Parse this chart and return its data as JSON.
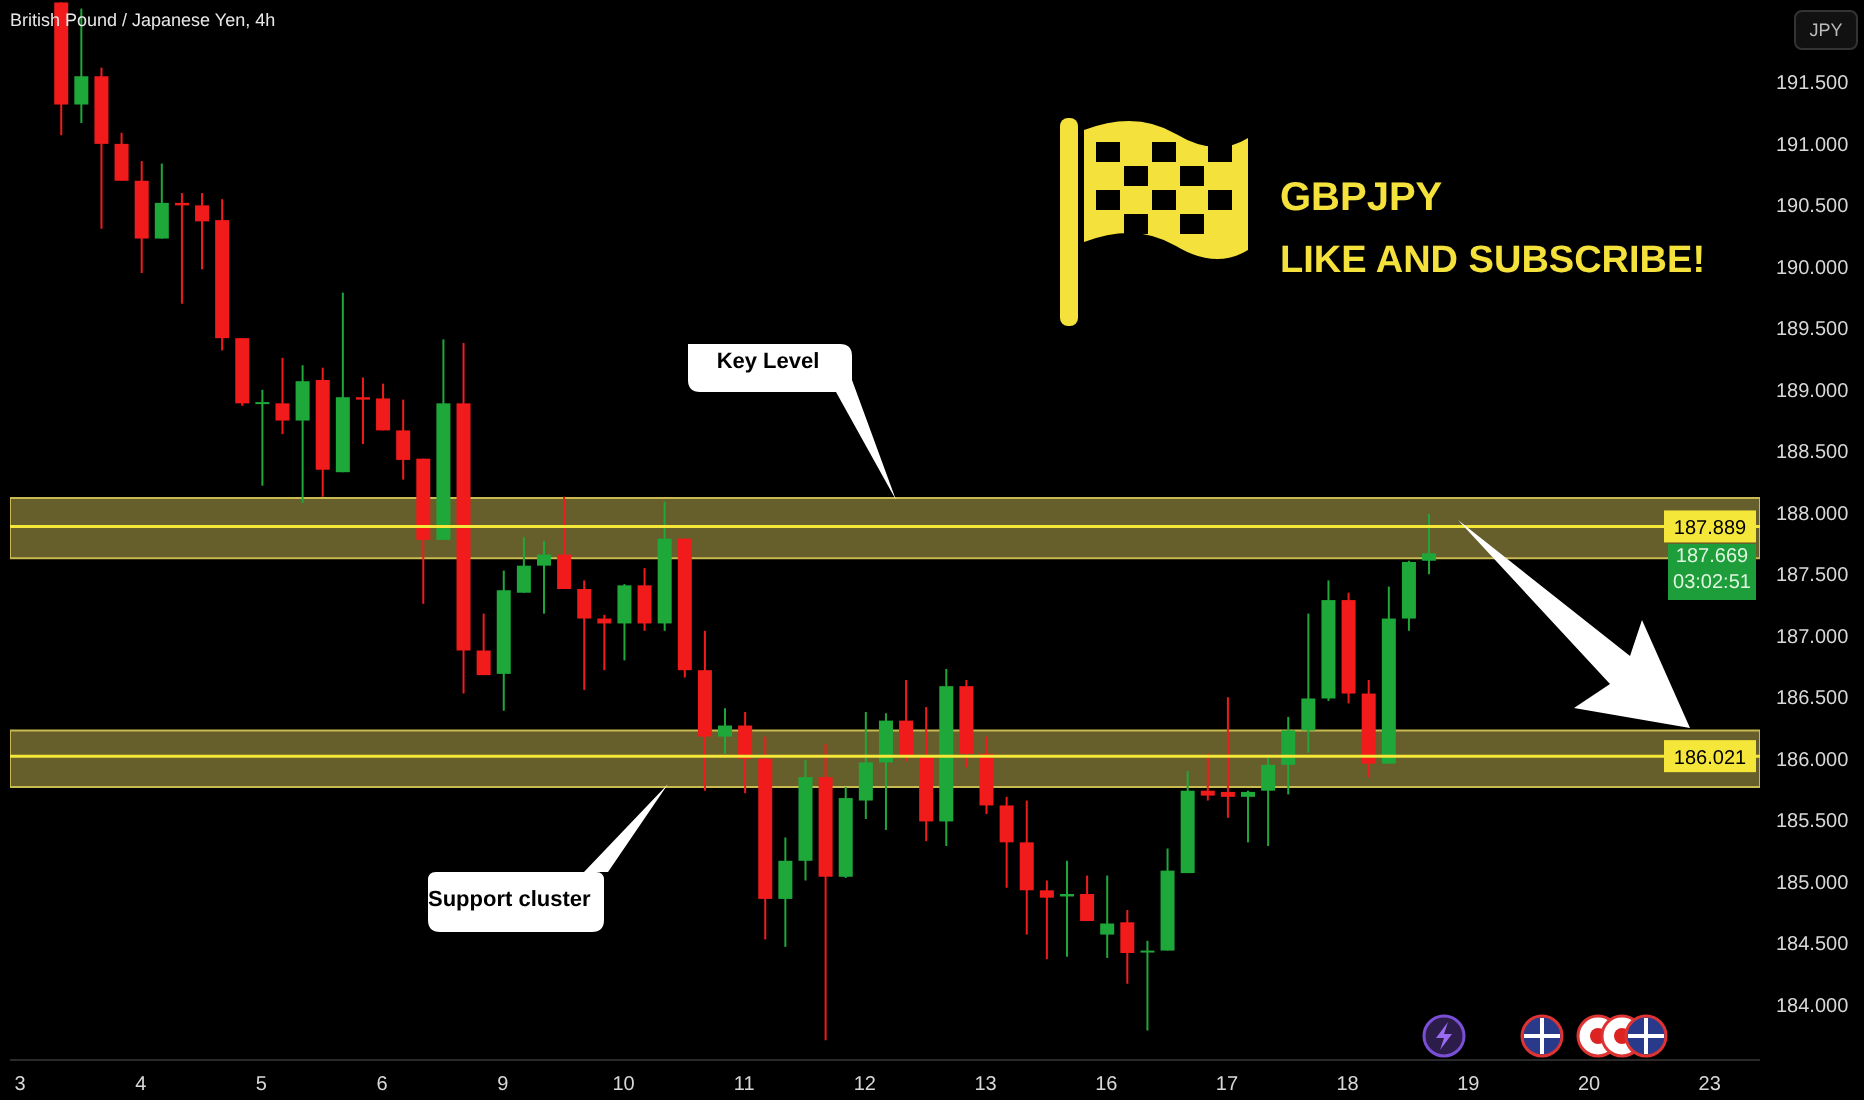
{
  "chart_data": {
    "type": "candlestick",
    "title": "British Pound / Japanese Yen, 4h",
    "ylabel": "JPY",
    "categories": [
      "3",
      null,
      null,
      null,
      null,
      null,
      "4",
      null,
      null,
      null,
      null,
      null,
      "5",
      null,
      null,
      null,
      null,
      null,
      "6",
      null,
      null,
      null,
      null,
      null,
      "9",
      null,
      null,
      null,
      null,
      null,
      "10",
      null,
      null,
      null,
      null,
      null,
      "11",
      null,
      null,
      null,
      null,
      null,
      "12",
      null,
      null,
      null,
      null,
      null,
      "13",
      null,
      null,
      null,
      null,
      null,
      "16",
      null,
      null,
      null,
      null,
      null,
      "17",
      null,
      null,
      null,
      null,
      null,
      "18",
      null,
      null,
      null,
      null,
      null,
      "19",
      null,
      null,
      null,
      null,
      null,
      "20",
      null,
      null,
      null,
      null,
      null,
      "23",
      null,
      null
    ],
    "ohlc": [
      null,
      null,
      [
        192.15,
        192.15,
        191.07,
        191.32
      ],
      [
        191.32,
        192.1,
        191.17,
        191.55
      ],
      [
        191.55,
        191.62,
        190.31,
        191.0
      ],
      [
        191.0,
        191.09,
        190.7,
        190.7
      ],
      [
        190.7,
        190.86,
        189.95,
        190.23
      ],
      [
        190.23,
        190.84,
        190.23,
        190.52
      ],
      [
        190.52,
        190.6,
        189.7,
        190.5
      ],
      [
        190.5,
        190.6,
        189.98,
        190.37
      ],
      [
        190.38,
        190.55,
        189.32,
        189.42
      ],
      [
        189.42,
        189.42,
        188.87,
        188.89
      ],
      [
        188.89,
        189.0,
        188.22,
        188.9
      ],
      [
        188.89,
        189.26,
        188.64,
        188.75
      ],
      [
        188.75,
        189.2,
        188.08,
        189.07
      ],
      [
        189.08,
        189.18,
        188.13,
        188.35
      ],
      [
        188.33,
        189.79,
        188.33,
        188.94
      ],
      [
        188.94,
        189.1,
        188.56,
        188.92
      ],
      [
        188.93,
        189.05,
        188.67,
        188.67
      ],
      [
        188.67,
        188.92,
        188.27,
        188.43
      ],
      [
        188.44,
        188.44,
        187.26,
        187.78
      ],
      [
        187.78,
        189.41,
        187.78,
        188.89
      ],
      [
        188.89,
        189.38,
        186.53,
        186.88
      ],
      [
        186.88,
        187.18,
        186.68,
        186.68
      ],
      [
        186.69,
        187.53,
        186.39,
        187.37
      ],
      [
        187.35,
        187.8,
        187.35,
        187.57
      ],
      [
        187.57,
        187.77,
        187.18,
        187.66
      ],
      [
        187.66,
        188.13,
        187.38,
        187.38
      ],
      [
        187.38,
        187.45,
        186.56,
        187.14
      ],
      [
        187.14,
        187.17,
        186.72,
        187.1
      ],
      [
        187.1,
        187.42,
        186.8,
        187.41
      ],
      [
        187.41,
        187.55,
        187.04,
        187.1
      ],
      [
        187.1,
        188.09,
        187.04,
        187.79
      ],
      [
        187.79,
        187.79,
        186.66,
        186.72
      ],
      [
        186.72,
        187.04,
        185.74,
        186.18
      ],
      [
        186.18,
        186.41,
        186.04,
        186.27
      ],
      [
        186.27,
        186.38,
        185.72,
        186.0
      ],
      [
        186.0,
        186.18,
        184.53,
        184.86
      ],
      [
        184.86,
        185.36,
        184.47,
        185.17
      ],
      [
        185.17,
        185.99,
        185.01,
        185.85
      ],
      [
        185.85,
        186.12,
        183.71,
        185.04
      ],
      [
        185.04,
        185.77,
        185.03,
        185.68
      ],
      [
        185.66,
        186.38,
        185.51,
        185.97
      ],
      [
        185.97,
        186.37,
        185.42,
        186.31
      ],
      [
        186.31,
        186.64,
        185.98,
        186.02
      ],
      [
        186.02,
        186.42,
        185.33,
        185.49
      ],
      [
        185.49,
        186.73,
        185.29,
        186.59
      ],
      [
        186.59,
        186.64,
        185.93,
        186.04
      ],
      [
        186.04,
        186.18,
        185.55,
        185.62
      ],
      [
        185.62,
        185.69,
        184.95,
        185.32
      ],
      [
        185.32,
        185.66,
        184.57,
        184.93
      ],
      [
        184.93,
        185.01,
        184.37,
        184.87
      ],
      [
        184.88,
        185.17,
        184.39,
        184.9
      ],
      [
        184.9,
        185.05,
        184.68,
        184.68
      ],
      [
        184.57,
        185.05,
        184.38,
        184.66
      ],
      [
        184.67,
        184.77,
        184.17,
        184.42
      ],
      [
        184.43,
        184.52,
        183.79,
        184.44
      ],
      [
        184.44,
        185.27,
        184.44,
        185.09
      ],
      [
        185.07,
        185.9,
        185.07,
        185.74
      ],
      [
        185.74,
        186.04,
        185.66,
        185.7
      ],
      [
        185.73,
        186.5,
        185.52,
        185.69
      ],
      [
        185.69,
        185.74,
        185.32,
        185.73
      ],
      [
        185.74,
        186.01,
        185.29,
        185.95
      ],
      [
        185.95,
        186.34,
        185.71,
        186.23
      ],
      [
        186.23,
        187.18,
        186.05,
        186.49
      ],
      [
        186.49,
        187.45,
        186.47,
        187.29
      ],
      [
        187.29,
        187.35,
        186.45,
        186.53
      ],
      [
        186.53,
        186.64,
        185.85,
        185.96
      ],
      [
        185.96,
        187.4,
        185.96,
        187.14
      ],
      [
        187.14,
        187.61,
        187.04,
        187.6
      ],
      [
        187.61,
        187.99,
        187.5,
        187.67
      ],
      null,
      null,
      null,
      null,
      null,
      null,
      null,
      null,
      null,
      null,
      null,
      null,
      null,
      null,
      null,
      null
    ],
    "ylim": [
      183.55,
      192.17
    ],
    "yticks": [
      {
        "value": 184,
        "label": "184.000"
      },
      {
        "value": 184.5,
        "label": "184.500"
      },
      {
        "value": 185,
        "label": "185.000"
      },
      {
        "value": 185.5,
        "label": "185.500"
      },
      {
        "value": 186,
        "label": "186.000"
      },
      {
        "value": 186.5,
        "label": "186.500"
      },
      {
        "value": 187,
        "label": "187.000"
      },
      {
        "value": 187.5,
        "label": "187.500"
      },
      {
        "value": 188,
        "label": "188.000"
      },
      {
        "value": 188.5,
        "label": "188.500"
      },
      {
        "value": 189,
        "label": "189.000"
      },
      {
        "value": 189.5,
        "label": "189.500"
      },
      {
        "value": 190,
        "label": "190.000"
      },
      {
        "value": 190.5,
        "label": "190.500"
      },
      {
        "value": 191,
        "label": "191.000"
      },
      {
        "value": 191.5,
        "label": "191.500"
      }
    ],
    "ref_lines": [
      {
        "axis": "y",
        "value": 187.889,
        "label": "187.889",
        "color": "#f5e63a"
      },
      {
        "axis": "y",
        "value": 186.021,
        "label": "186.021",
        "color": "#f5e63a"
      }
    ],
    "bands": [
      {
        "axis": "y",
        "from": 187.63,
        "to": 188.12,
        "color": "#8a7f3a"
      },
      {
        "axis": "y",
        "from": 185.77,
        "to": 186.23,
        "color": "#8a7f3a"
      }
    ],
    "annotations": [
      "GBPJPY",
      "LIKE AND SUBSCRIBE!",
      "Key Level",
      "Support cluster",
      "187.669",
      "03:02:51"
    ]
  }
}
